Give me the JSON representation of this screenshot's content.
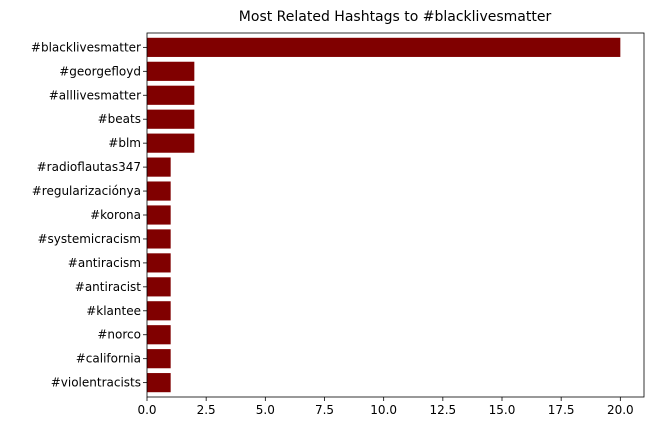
{
  "chart_data": {
    "type": "bar",
    "orientation": "horizontal",
    "title": "Most Related Hashtags to #blacklivesmatter",
    "xlabel": "",
    "ylabel": "",
    "categories": [
      "#blacklivesmatter",
      "#georgefloyd",
      "#alllivesmatter",
      "#beats",
      "#blm",
      "#radioflautas347",
      "#regularizaciónya",
      "#korona",
      "#systemicracism",
      "#antiracism",
      "#antiracist",
      "#klantee",
      "#norco",
      "#california",
      "#violentracists"
    ],
    "values": [
      20,
      2,
      2,
      2,
      2,
      1,
      1,
      1,
      1,
      1,
      1,
      1,
      1,
      1,
      1
    ],
    "xlim": [
      0,
      21
    ],
    "xticks": [
      0.0,
      2.5,
      5.0,
      7.5,
      10.0,
      12.5,
      15.0,
      17.5,
      20.0
    ],
    "xtick_labels": [
      "0.0",
      "2.5",
      "5.0",
      "7.5",
      "10.0",
      "12.5",
      "15.0",
      "17.5",
      "20.0"
    ],
    "bar_color": "#800000",
    "grid": false,
    "legend": "none"
  }
}
